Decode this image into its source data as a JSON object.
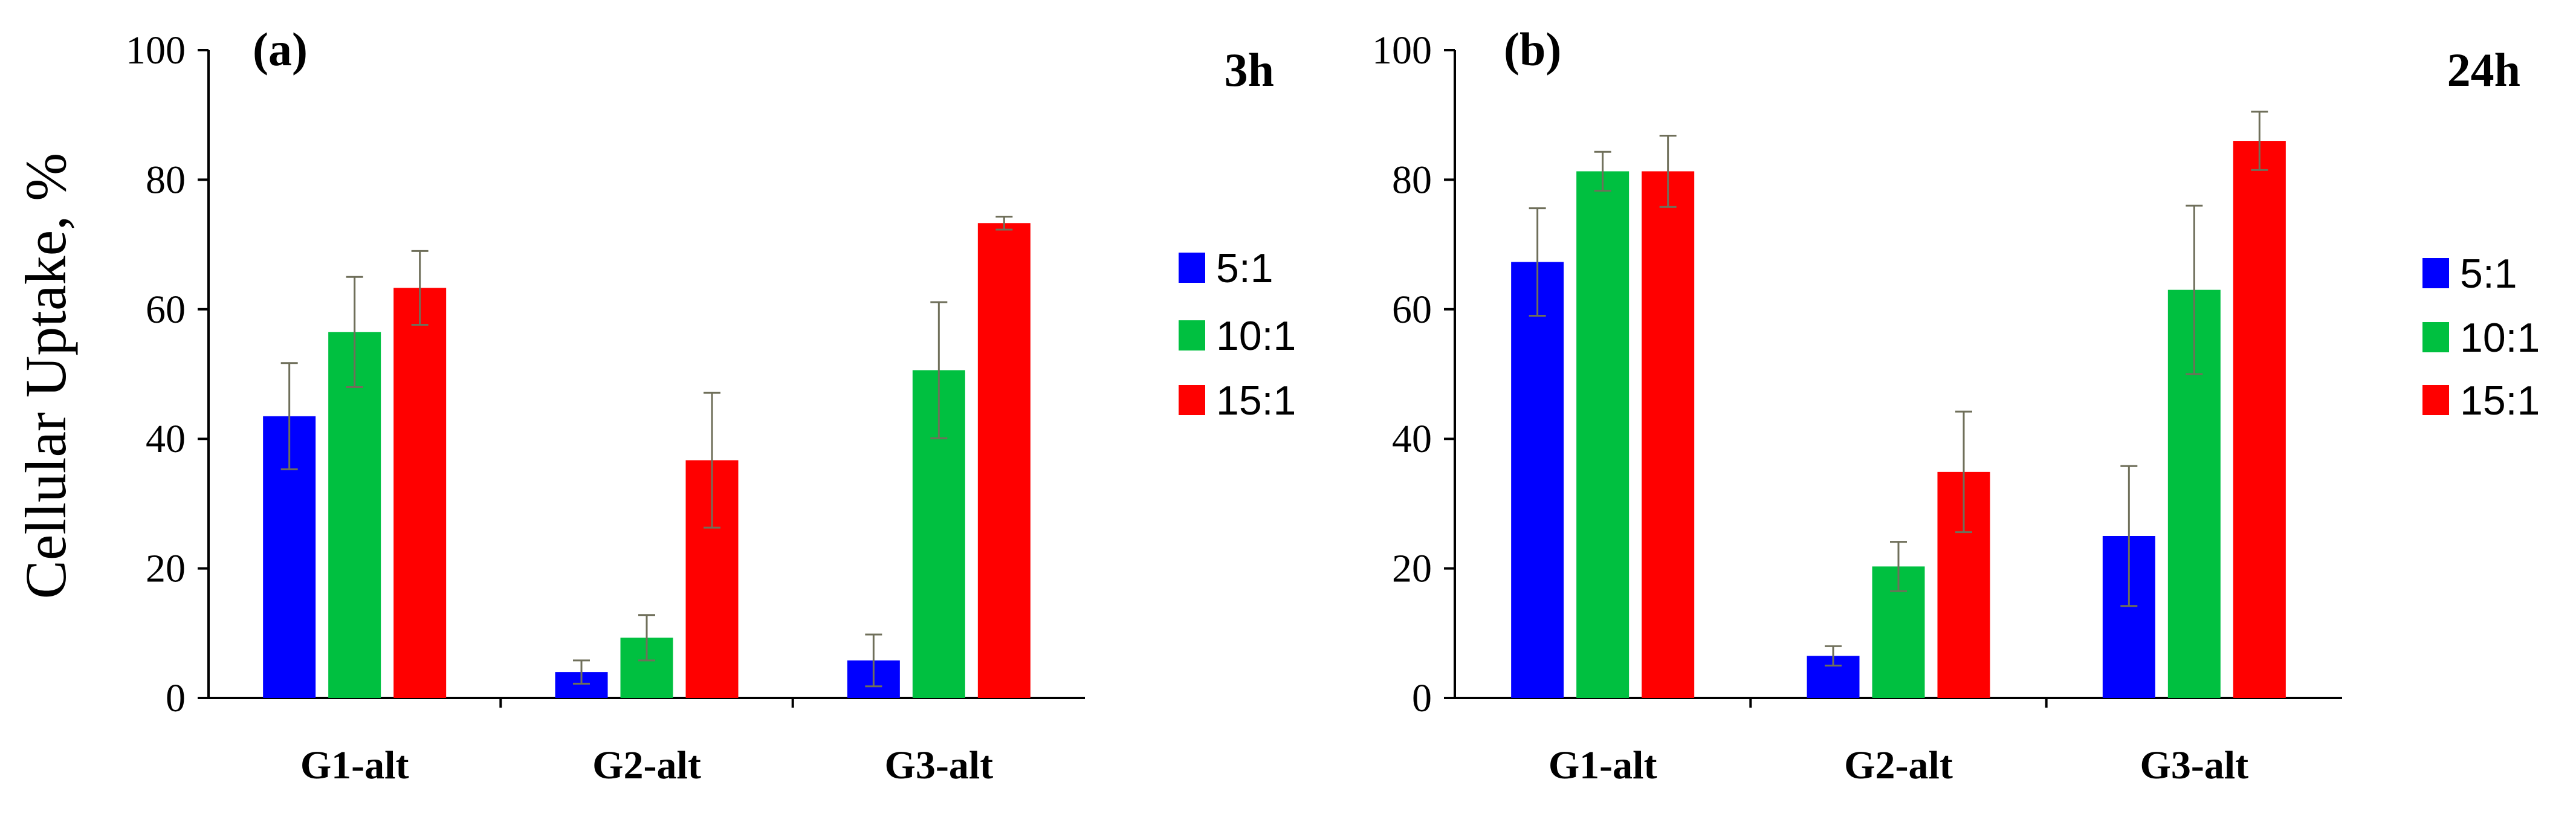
{
  "chart_data": [
    {
      "type": "bar",
      "panel_label": "(a)",
      "time_label": "3h",
      "title": "",
      "xlabel": "",
      "ylabel": "Cellular Uptake, %",
      "ylim": [
        0,
        100
      ],
      "yticks": [
        0,
        20,
        40,
        60,
        80,
        100
      ],
      "grid": false,
      "legend_position": "right",
      "categories": [
        "G1-alt",
        "G2-alt",
        "G3-alt"
      ],
      "series": [
        {
          "name": "5:1",
          "color": "#0000ff",
          "values": [
            43.5,
            4.0,
            5.8
          ],
          "errors": [
            8.2,
            1.8,
            4.0
          ]
        },
        {
          "name": "10:1",
          "color": "#00c040",
          "values": [
            56.5,
            9.3,
            50.6
          ],
          "errors": [
            8.5,
            3.5,
            10.5
          ]
        },
        {
          "name": "15:1",
          "color": "#ff0000",
          "values": [
            63.3,
            36.7,
            73.3
          ],
          "errors": [
            5.7,
            10.4,
            1.0
          ]
        }
      ],
      "error_bar_color": "#6f6f5a"
    },
    {
      "type": "bar",
      "panel_label": "(b)",
      "time_label": "24h",
      "title": "",
      "xlabel": "",
      "ylabel": "",
      "ylim": [
        0,
        100
      ],
      "yticks": [
        0,
        20,
        40,
        60,
        80,
        100
      ],
      "grid": false,
      "legend_position": "right",
      "categories": [
        "G1-alt",
        "G2-alt",
        "G3-alt"
      ],
      "series": [
        {
          "name": "5:1",
          "color": "#0000ff",
          "values": [
            67.3,
            6.5,
            25.0
          ],
          "errors": [
            8.3,
            1.5,
            10.8
          ]
        },
        {
          "name": "10:1",
          "color": "#00c040",
          "values": [
            81.3,
            20.3,
            63.0
          ],
          "errors": [
            3.0,
            3.8,
            13.0
          ]
        },
        {
          "name": "15:1",
          "color": "#ff0000",
          "values": [
            81.3,
            34.9,
            86.0
          ],
          "errors": [
            5.5,
            9.3,
            4.5
          ]
        }
      ],
      "error_bar_color": "#6f6f5a"
    }
  ]
}
